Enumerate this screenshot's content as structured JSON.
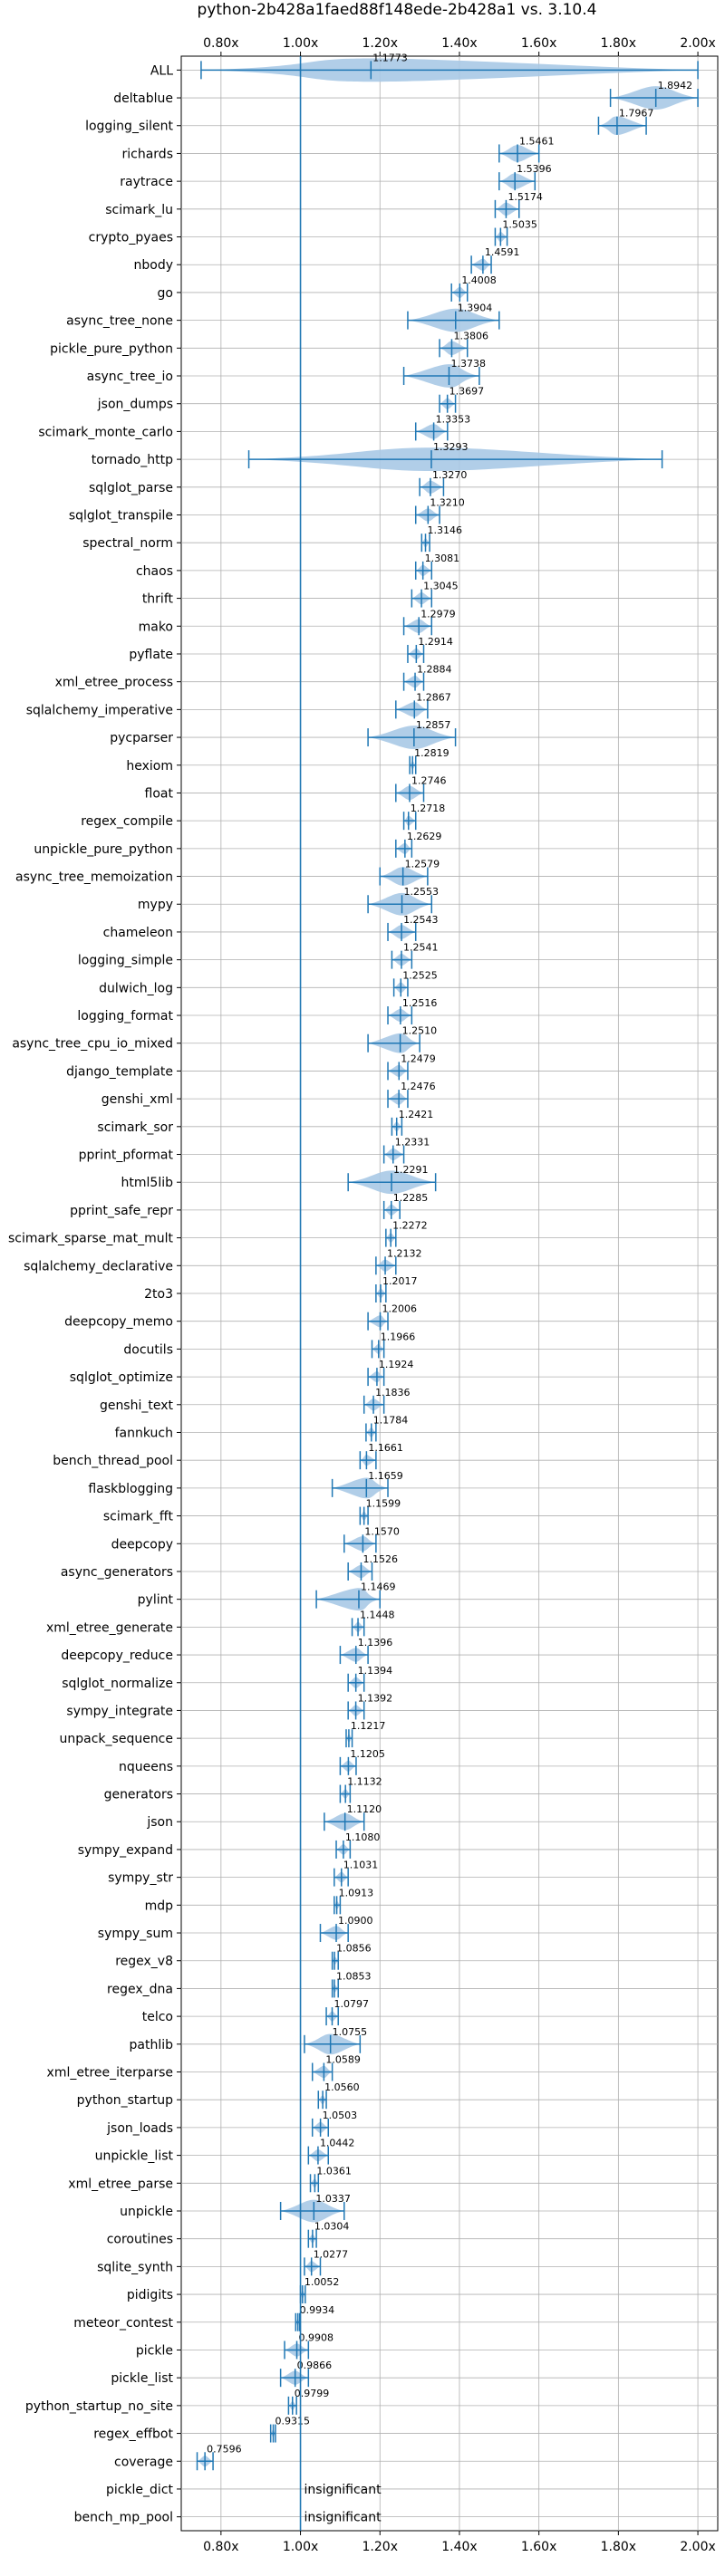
{
  "chart_data": {
    "type": "violin",
    "title": "python-2b428a1faed88f148ede-2b428a1 vs. 3.10.4",
    "xlabel": "",
    "ylabel": "",
    "x_axis_position": "top and bottom",
    "xlim": [
      0.7,
      2.05
    ],
    "x_ticks": [
      0.8,
      1.0,
      1.2,
      1.4,
      1.6,
      1.8,
      2.0
    ],
    "x_tick_labels": [
      "0.80x",
      "1.00x",
      "1.20x",
      "1.40x",
      "1.60x",
      "1.80x",
      "2.00x"
    ],
    "reference_line": 1.0,
    "grid": true,
    "color": "#1f77b4",
    "violin_fill": "#a9c9e6",
    "benchmarks": [
      {
        "name": "ALL",
        "value": 1.1773,
        "label": "1.1773",
        "min": 0.75,
        "max": 2.0
      },
      {
        "name": "deltablue",
        "value": 1.8942,
        "label": "1.8942",
        "min": 1.78,
        "max": 2.0
      },
      {
        "name": "logging_silent",
        "value": 1.7967,
        "label": "1.7967",
        "min": 1.75,
        "max": 1.87
      },
      {
        "name": "richards",
        "value": 1.5461,
        "label": "1.5461",
        "min": 1.5,
        "max": 1.6
      },
      {
        "name": "raytrace",
        "value": 1.5396,
        "label": "1.5396",
        "min": 1.5,
        "max": 1.59
      },
      {
        "name": "scimark_lu",
        "value": 1.5174,
        "label": "1.5174",
        "min": 1.49,
        "max": 1.55
      },
      {
        "name": "crypto_pyaes",
        "value": 1.5035,
        "label": "1.5035",
        "min": 1.49,
        "max": 1.52
      },
      {
        "name": "nbody",
        "value": 1.4591,
        "label": "1.4591",
        "min": 1.43,
        "max": 1.48
      },
      {
        "name": "go",
        "value": 1.4008,
        "label": "1.4008",
        "min": 1.38,
        "max": 1.42
      },
      {
        "name": "async_tree_none",
        "value": 1.3904,
        "label": "1.3904",
        "min": 1.27,
        "max": 1.5
      },
      {
        "name": "pickle_pure_python",
        "value": 1.3806,
        "label": "1.3806",
        "min": 1.35,
        "max": 1.42
      },
      {
        "name": "async_tree_io",
        "value": 1.3738,
        "label": "1.3738",
        "min": 1.26,
        "max": 1.45
      },
      {
        "name": "json_dumps",
        "value": 1.3697,
        "label": "1.3697",
        "min": 1.35,
        "max": 1.39
      },
      {
        "name": "scimark_monte_carlo",
        "value": 1.3353,
        "label": "1.3353",
        "min": 1.29,
        "max": 1.37
      },
      {
        "name": "tornado_http",
        "value": 1.3293,
        "label": "1.3293",
        "min": 0.87,
        "max": 1.91
      },
      {
        "name": "sqlglot_parse",
        "value": 1.327,
        "label": "1.3270",
        "min": 1.3,
        "max": 1.36
      },
      {
        "name": "sqlglot_transpile",
        "value": 1.321,
        "label": "1.3210",
        "min": 1.29,
        "max": 1.35
      },
      {
        "name": "spectral_norm",
        "value": 1.3146,
        "label": "1.3146",
        "min": 1.305,
        "max": 1.325
      },
      {
        "name": "chaos",
        "value": 1.3081,
        "label": "1.3081",
        "min": 1.29,
        "max": 1.33
      },
      {
        "name": "thrift",
        "value": 1.3045,
        "label": "1.3045",
        "min": 1.28,
        "max": 1.33
      },
      {
        "name": "mako",
        "value": 1.2979,
        "label": "1.2979",
        "min": 1.26,
        "max": 1.33
      },
      {
        "name": "pyflate",
        "value": 1.2914,
        "label": "1.2914",
        "min": 1.27,
        "max": 1.31
      },
      {
        "name": "xml_etree_process",
        "value": 1.2884,
        "label": "1.2884",
        "min": 1.26,
        "max": 1.31
      },
      {
        "name": "sqlalchemy_imperative",
        "value": 1.2867,
        "label": "1.2867",
        "min": 1.24,
        "max": 1.32
      },
      {
        "name": "pycparser",
        "value": 1.2857,
        "label": "1.2857",
        "min": 1.17,
        "max": 1.39
      },
      {
        "name": "hexiom",
        "value": 1.2819,
        "label": "1.2819",
        "min": 1.275,
        "max": 1.29
      },
      {
        "name": "float",
        "value": 1.2746,
        "label": "1.2746",
        "min": 1.24,
        "max": 1.31
      },
      {
        "name": "regex_compile",
        "value": 1.2718,
        "label": "1.2718",
        "min": 1.26,
        "max": 1.29
      },
      {
        "name": "unpickle_pure_python",
        "value": 1.2629,
        "label": "1.2629",
        "min": 1.24,
        "max": 1.28
      },
      {
        "name": "async_tree_memoization",
        "value": 1.2579,
        "label": "1.2579",
        "min": 1.2,
        "max": 1.32
      },
      {
        "name": "mypy",
        "value": 1.2553,
        "label": "1.2553",
        "min": 1.17,
        "max": 1.33
      },
      {
        "name": "chameleon",
        "value": 1.2543,
        "label": "1.2543",
        "min": 1.22,
        "max": 1.29
      },
      {
        "name": "logging_simple",
        "value": 1.2541,
        "label": "1.2541",
        "min": 1.23,
        "max": 1.28
      },
      {
        "name": "dulwich_log",
        "value": 1.2525,
        "label": "1.2525",
        "min": 1.235,
        "max": 1.27
      },
      {
        "name": "logging_format",
        "value": 1.2516,
        "label": "1.2516",
        "min": 1.22,
        "max": 1.28
      },
      {
        "name": "async_tree_cpu_io_mixed",
        "value": 1.251,
        "label": "1.2510",
        "min": 1.17,
        "max": 1.3
      },
      {
        "name": "django_template",
        "value": 1.2479,
        "label": "1.2479",
        "min": 1.22,
        "max": 1.27
      },
      {
        "name": "genshi_xml",
        "value": 1.2476,
        "label": "1.2476",
        "min": 1.22,
        "max": 1.27
      },
      {
        "name": "scimark_sor",
        "value": 1.2421,
        "label": "1.2421",
        "min": 1.23,
        "max": 1.255
      },
      {
        "name": "pprint_pformat",
        "value": 1.2331,
        "label": "1.2331",
        "min": 1.21,
        "max": 1.26
      },
      {
        "name": "html5lib",
        "value": 1.2291,
        "label": "1.2291",
        "min": 1.12,
        "max": 1.34
      },
      {
        "name": "pprint_safe_repr",
        "value": 1.2285,
        "label": "1.2285",
        "min": 1.21,
        "max": 1.25
      },
      {
        "name": "scimark_sparse_mat_mult",
        "value": 1.2272,
        "label": "1.2272",
        "min": 1.215,
        "max": 1.24
      },
      {
        "name": "sqlalchemy_declarative",
        "value": 1.2132,
        "label": "1.2132",
        "min": 1.19,
        "max": 1.24
      },
      {
        "name": "2to3",
        "value": 1.2017,
        "label": "1.2017",
        "min": 1.19,
        "max": 1.215
      },
      {
        "name": "deepcopy_memo",
        "value": 1.2006,
        "label": "1.2006",
        "min": 1.17,
        "max": 1.22
      },
      {
        "name": "docutils",
        "value": 1.1966,
        "label": "1.1966",
        "min": 1.18,
        "max": 1.21
      },
      {
        "name": "sqlglot_optimize",
        "value": 1.1924,
        "label": "1.1924",
        "min": 1.17,
        "max": 1.21
      },
      {
        "name": "genshi_text",
        "value": 1.1836,
        "label": "1.1836",
        "min": 1.16,
        "max": 1.21
      },
      {
        "name": "fannkuch",
        "value": 1.1784,
        "label": "1.1784",
        "min": 1.165,
        "max": 1.19
      },
      {
        "name": "bench_thread_pool",
        "value": 1.1661,
        "label": "1.1661",
        "min": 1.15,
        "max": 1.19
      },
      {
        "name": "flaskblogging",
        "value": 1.1659,
        "label": "1.1659",
        "min": 1.08,
        "max": 1.22
      },
      {
        "name": "scimark_fft",
        "value": 1.1599,
        "label": "1.1599",
        "min": 1.15,
        "max": 1.17
      },
      {
        "name": "deepcopy",
        "value": 1.157,
        "label": "1.1570",
        "min": 1.11,
        "max": 1.19
      },
      {
        "name": "async_generators",
        "value": 1.1526,
        "label": "1.1526",
        "min": 1.12,
        "max": 1.18
      },
      {
        "name": "pylint",
        "value": 1.1469,
        "label": "1.1469",
        "min": 1.04,
        "max": 1.2
      },
      {
        "name": "xml_etree_generate",
        "value": 1.1448,
        "label": "1.1448",
        "min": 1.13,
        "max": 1.16
      },
      {
        "name": "deepcopy_reduce",
        "value": 1.1396,
        "label": "1.1396",
        "min": 1.1,
        "max": 1.17
      },
      {
        "name": "sqlglot_normalize",
        "value": 1.1394,
        "label": "1.1394",
        "min": 1.12,
        "max": 1.16
      },
      {
        "name": "sympy_integrate",
        "value": 1.1392,
        "label": "1.1392",
        "min": 1.12,
        "max": 1.16
      },
      {
        "name": "unpack_sequence",
        "value": 1.1217,
        "label": "1.1217",
        "min": 1.115,
        "max": 1.13
      },
      {
        "name": "nqueens",
        "value": 1.1205,
        "label": "1.1205",
        "min": 1.1,
        "max": 1.14
      },
      {
        "name": "generators",
        "value": 1.1132,
        "label": "1.1132",
        "min": 1.1,
        "max": 1.125
      },
      {
        "name": "json",
        "value": 1.112,
        "label": "1.1120",
        "min": 1.06,
        "max": 1.16
      },
      {
        "name": "sympy_expand",
        "value": 1.108,
        "label": "1.1080",
        "min": 1.09,
        "max": 1.125
      },
      {
        "name": "sympy_str",
        "value": 1.1031,
        "label": "1.1031",
        "min": 1.085,
        "max": 1.12
      },
      {
        "name": "mdp",
        "value": 1.0913,
        "label": "1.0913",
        "min": 1.085,
        "max": 1.1
      },
      {
        "name": "sympy_sum",
        "value": 1.09,
        "label": "1.0900",
        "min": 1.05,
        "max": 1.12
      },
      {
        "name": "regex_v8",
        "value": 1.0856,
        "label": "1.0856",
        "min": 1.08,
        "max": 1.095
      },
      {
        "name": "regex_dna",
        "value": 1.0853,
        "label": "1.0853",
        "min": 1.08,
        "max": 1.095
      },
      {
        "name": "telco",
        "value": 1.0797,
        "label": "1.0797",
        "min": 1.065,
        "max": 1.095
      },
      {
        "name": "pathlib",
        "value": 1.0755,
        "label": "1.0755",
        "min": 1.01,
        "max": 1.15
      },
      {
        "name": "xml_etree_iterparse",
        "value": 1.0589,
        "label": "1.0589",
        "min": 1.03,
        "max": 1.08
      },
      {
        "name": "python_startup",
        "value": 1.056,
        "label": "1.0560",
        "min": 1.045,
        "max": 1.065
      },
      {
        "name": "json_loads",
        "value": 1.0503,
        "label": "1.0503",
        "min": 1.03,
        "max": 1.07
      },
      {
        "name": "unpickle_list",
        "value": 1.0442,
        "label": "1.0442",
        "min": 1.02,
        "max": 1.07
      },
      {
        "name": "xml_etree_parse",
        "value": 1.0361,
        "label": "1.0361",
        "min": 1.025,
        "max": 1.045
      },
      {
        "name": "unpickle",
        "value": 1.0337,
        "label": "1.0337",
        "min": 0.95,
        "max": 1.11
      },
      {
        "name": "coroutines",
        "value": 1.0304,
        "label": "1.0304",
        "min": 1.02,
        "max": 1.04
      },
      {
        "name": "sqlite_synth",
        "value": 1.0277,
        "label": "1.0277",
        "min": 1.01,
        "max": 1.05
      },
      {
        "name": "pidigits",
        "value": 1.0052,
        "label": "1.0052",
        "min": 1.0,
        "max": 1.012
      },
      {
        "name": "meteor_contest",
        "value": 0.9934,
        "label": "0.9934",
        "min": 0.988,
        "max": 0.998
      },
      {
        "name": "pickle",
        "value": 0.9908,
        "label": "0.9908",
        "min": 0.96,
        "max": 1.02
      },
      {
        "name": "pickle_list",
        "value": 0.9866,
        "label": "0.9866",
        "min": 0.95,
        "max": 1.02
      },
      {
        "name": "python_startup_no_site",
        "value": 0.9799,
        "label": "0.9799",
        "min": 0.97,
        "max": 0.99
      },
      {
        "name": "regex_effbot",
        "value": 0.9315,
        "label": "0.9315",
        "min": 0.925,
        "max": 0.937
      },
      {
        "name": "coverage",
        "value": 0.7596,
        "label": "0.7596",
        "min": 0.74,
        "max": 0.78
      },
      {
        "name": "pickle_dict",
        "value": null,
        "label": "insignificant",
        "min": null,
        "max": null
      },
      {
        "name": "bench_mp_pool",
        "value": null,
        "label": "insignificant",
        "min": null,
        "max": null
      }
    ]
  }
}
